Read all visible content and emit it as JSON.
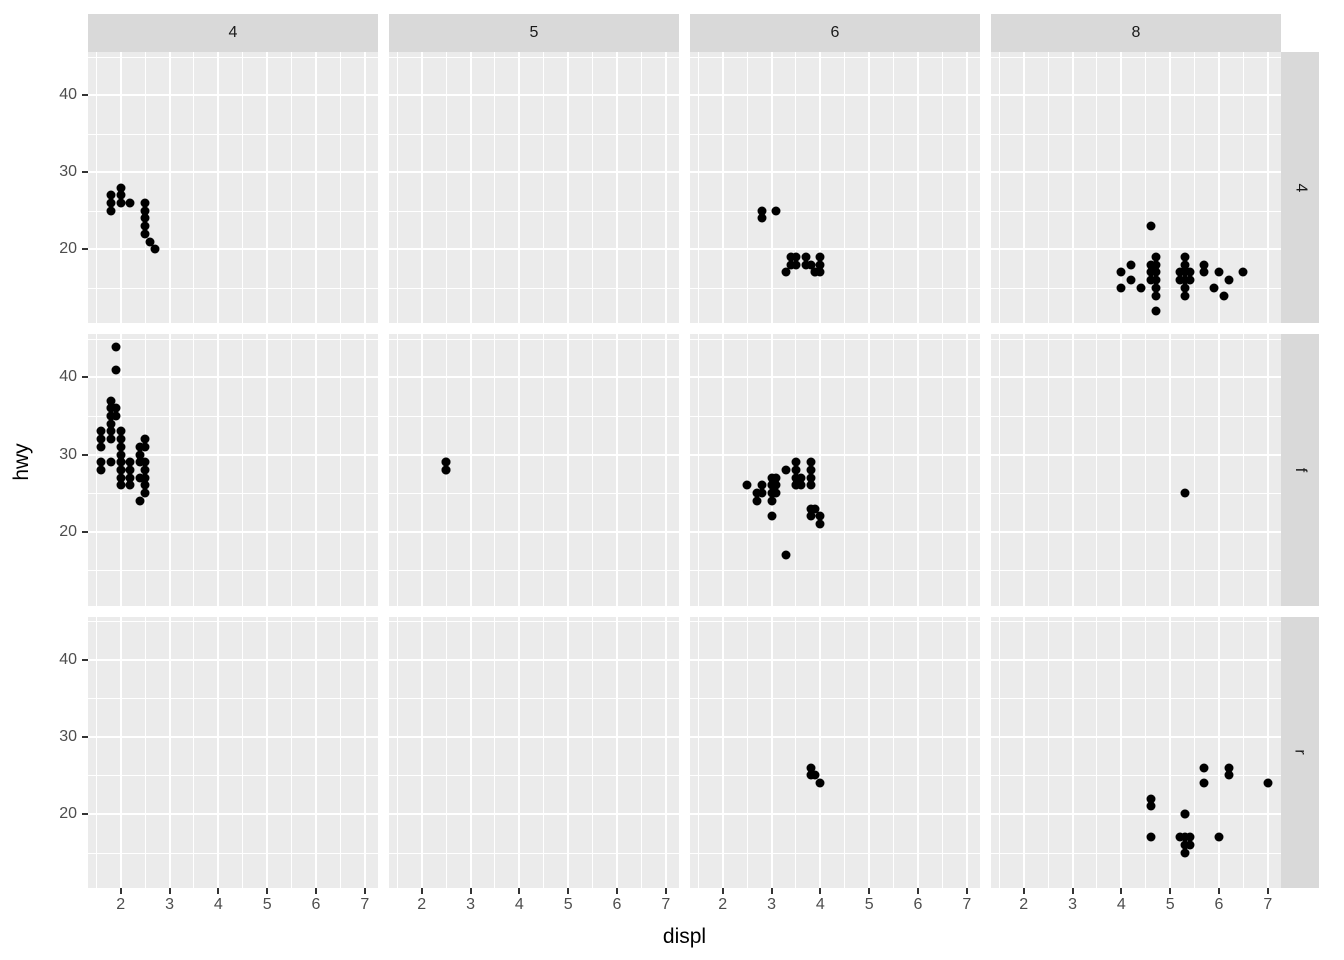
{
  "chart_data": {
    "type": "scatter",
    "title": "",
    "xlabel": "displ",
    "ylabel": "hwy",
    "x_ticks": [
      2,
      3,
      4,
      5,
      6,
      7
    ],
    "y_ticks": [
      20,
      30,
      40
    ],
    "x_minor": [
      1.5,
      2.5,
      3.5,
      4.5,
      5.5,
      6.5
    ],
    "y_minor": [
      15,
      25,
      35,
      45
    ],
    "xlim": [
      1.33,
      7.27
    ],
    "ylim": [
      10.4,
      45.6
    ],
    "grid": true,
    "legend_position": "none",
    "facet": {
      "rows_var": "drv",
      "cols_var": "cyl",
      "row_labels": [
        "4",
        "f",
        "r"
      ],
      "col_labels": [
        "4",
        "5",
        "6",
        "8"
      ]
    },
    "colors": {
      "point": "#000000",
      "panel_bg": "#EBEBEB",
      "strip_bg": "#D9D9D9",
      "grid": "#FFFFFF",
      "axis_text": "#4D4D4D",
      "tick_mark": "#333333"
    },
    "series": [
      {
        "row": "4",
        "col": "4",
        "points": [
          [
            1.8,
            26
          ],
          [
            1.8,
            25
          ],
          [
            1.8,
            27
          ],
          [
            2.0,
            28
          ],
          [
            2.0,
            27
          ],
          [
            2.0,
            26
          ],
          [
            2.2,
            26
          ],
          [
            2.5,
            26
          ],
          [
            2.5,
            25
          ],
          [
            2.5,
            24
          ],
          [
            2.5,
            23
          ],
          [
            2.5,
            22
          ],
          [
            2.6,
            21
          ],
          [
            2.7,
            20
          ]
        ]
      },
      {
        "row": "4",
        "col": "6",
        "points": [
          [
            2.8,
            25
          ],
          [
            2.8,
            24
          ],
          [
            3.1,
            25
          ],
          [
            3.3,
            17
          ],
          [
            3.4,
            19
          ],
          [
            3.4,
            18
          ],
          [
            3.5,
            19
          ],
          [
            3.5,
            18
          ],
          [
            3.7,
            19
          ],
          [
            3.7,
            18
          ],
          [
            3.8,
            18
          ],
          [
            3.9,
            17
          ],
          [
            3.9,
            17
          ],
          [
            4.0,
            19
          ],
          [
            4.0,
            18
          ],
          [
            4.0,
            17
          ]
        ]
      },
      {
        "row": "4",
        "col": "8",
        "points": [
          [
            4.0,
            17
          ],
          [
            4.0,
            15
          ],
          [
            4.2,
            18
          ],
          [
            4.2,
            16
          ],
          [
            4.4,
            15
          ],
          [
            4.6,
            23
          ],
          [
            4.6,
            18
          ],
          [
            4.6,
            17
          ],
          [
            4.6,
            16
          ],
          [
            4.7,
            19
          ],
          [
            4.7,
            18
          ],
          [
            4.7,
            17
          ],
          [
            4.7,
            16
          ],
          [
            4.7,
            15
          ],
          [
            4.7,
            14
          ],
          [
            4.7,
            12
          ],
          [
            5.2,
            17
          ],
          [
            5.2,
            16
          ],
          [
            5.3,
            19
          ],
          [
            5.3,
            18
          ],
          [
            5.3,
            17
          ],
          [
            5.3,
            16
          ],
          [
            5.3,
            15
          ],
          [
            5.3,
            14
          ],
          [
            5.4,
            17
          ],
          [
            5.4,
            16
          ],
          [
            5.7,
            18
          ],
          [
            5.7,
            17
          ],
          [
            5.9,
            15
          ],
          [
            6.0,
            17
          ],
          [
            6.1,
            14
          ],
          [
            6.2,
            16
          ],
          [
            6.5,
            17
          ]
        ]
      },
      {
        "row": "f",
        "col": "4",
        "points": [
          [
            1.6,
            33
          ],
          [
            1.6,
            32
          ],
          [
            1.6,
            31
          ],
          [
            1.6,
            29
          ],
          [
            1.6,
            28
          ],
          [
            1.8,
            37
          ],
          [
            1.8,
            36
          ],
          [
            1.8,
            36
          ],
          [
            1.8,
            35
          ],
          [
            1.8,
            35
          ],
          [
            1.8,
            34
          ],
          [
            1.8,
            33
          ],
          [
            1.8,
            32
          ],
          [
            1.8,
            29
          ],
          [
            1.9,
            44
          ],
          [
            1.9,
            41
          ],
          [
            1.9,
            36
          ],
          [
            1.9,
            35
          ],
          [
            2.0,
            33
          ],
          [
            2.0,
            32
          ],
          [
            2.0,
            31
          ],
          [
            2.0,
            30
          ],
          [
            2.0,
            29
          ],
          [
            2.0,
            29
          ],
          [
            2.0,
            28
          ],
          [
            2.0,
            28
          ],
          [
            2.0,
            27
          ],
          [
            2.0,
            26
          ],
          [
            2.2,
            29
          ],
          [
            2.2,
            28
          ],
          [
            2.2,
            27
          ],
          [
            2.2,
            26
          ],
          [
            2.4,
            31
          ],
          [
            2.4,
            30
          ],
          [
            2.4,
            29
          ],
          [
            2.4,
            27
          ],
          [
            2.4,
            24
          ],
          [
            2.5,
            32
          ],
          [
            2.5,
            31
          ],
          [
            2.5,
            29
          ],
          [
            2.5,
            28
          ],
          [
            2.5,
            27
          ],
          [
            2.5,
            26
          ],
          [
            2.5,
            25
          ]
        ]
      },
      {
        "row": "f",
        "col": "5",
        "points": [
          [
            2.5,
            29
          ],
          [
            2.5,
            29
          ],
          [
            2.5,
            28
          ],
          [
            2.5,
            28
          ]
        ]
      },
      {
        "row": "f",
        "col": "6",
        "points": [
          [
            2.5,
            26
          ],
          [
            2.7,
            24
          ],
          [
            2.7,
            25
          ],
          [
            2.8,
            26
          ],
          [
            2.8,
            25
          ],
          [
            3.0,
            27
          ],
          [
            3.0,
            26
          ],
          [
            3.0,
            26
          ],
          [
            3.0,
            25
          ],
          [
            3.0,
            24
          ],
          [
            3.0,
            22
          ],
          [
            3.1,
            27
          ],
          [
            3.1,
            26
          ],
          [
            3.1,
            25
          ],
          [
            3.3,
            28
          ],
          [
            3.3,
            17
          ],
          [
            3.5,
            29
          ],
          [
            3.5,
            28
          ],
          [
            3.5,
            27
          ],
          [
            3.5,
            26
          ],
          [
            3.5,
            26
          ],
          [
            3.6,
            27
          ],
          [
            3.6,
            26
          ],
          [
            3.8,
            29
          ],
          [
            3.8,
            28
          ],
          [
            3.8,
            27
          ],
          [
            3.8,
            26
          ],
          [
            3.8,
            23
          ],
          [
            3.8,
            22
          ],
          [
            3.9,
            23
          ],
          [
            4.0,
            22
          ],
          [
            4.0,
            21
          ]
        ]
      },
      {
        "row": "f",
        "col": "8",
        "points": [
          [
            5.3,
            25
          ]
        ]
      },
      {
        "row": "r",
        "col": "6",
        "points": [
          [
            3.8,
            26
          ],
          [
            3.8,
            25
          ],
          [
            3.9,
            25
          ],
          [
            4.0,
            24
          ]
        ]
      },
      {
        "row": "r",
        "col": "8",
        "points": [
          [
            4.6,
            22
          ],
          [
            4.6,
            21
          ],
          [
            4.6,
            17
          ],
          [
            5.2,
            17
          ],
          [
            5.3,
            20
          ],
          [
            5.3,
            20
          ],
          [
            5.3,
            17
          ],
          [
            5.3,
            16
          ],
          [
            5.3,
            15
          ],
          [
            5.4,
            17
          ],
          [
            5.4,
            16
          ],
          [
            5.7,
            26
          ],
          [
            5.7,
            24
          ],
          [
            6.0,
            17
          ],
          [
            6.2,
            26
          ],
          [
            6.2,
            25
          ],
          [
            7.0,
            24
          ]
        ]
      }
    ]
  }
}
